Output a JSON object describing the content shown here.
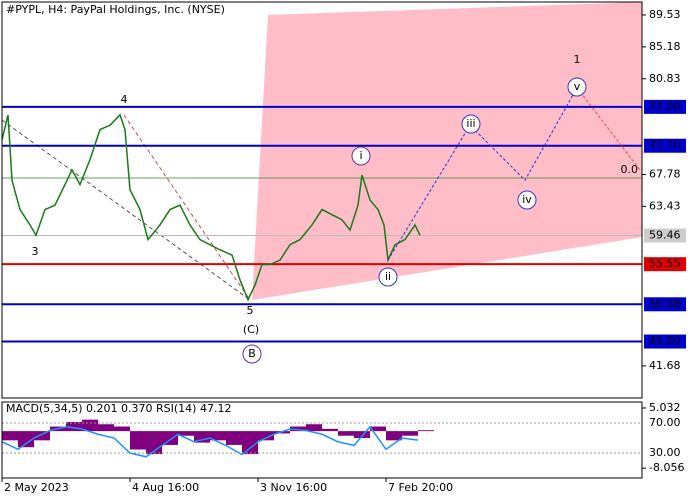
{
  "chart_data": [
    {
      "type": "line",
      "title": "#PYPL, H4:  PayPal Holdings, Inc. (NYSE)",
      "color": "#1a7a1a",
      "x": [
        0,
        1.5,
        2.5,
        4.5,
        7,
        8.5,
        10.75,
        13.25,
        15.75,
        17.5,
        19.5,
        22,
        24.5,
        27,
        29.5,
        30.75,
        32,
        34.5,
        36.5,
        39.5,
        42,
        44.5,
        47,
        49.5,
        52,
        54.5,
        57.5,
        59.5,
        61.5,
        63.25,
        65,
        67,
        69.5,
        72,
        74.5,
        77.5,
        80,
        82.5,
        85,
        87,
        89,
        90,
        92,
        94,
        95.5,
        96.5,
        98.25,
        100.75,
        103.25,
        104.5
      ],
      "values": [
        72.5,
        75.9,
        67.0,
        63.0,
        60.9,
        59.5,
        63.0,
        63.6,
        66.4,
        68.4,
        66.4,
        69.8,
        73.9,
        74.5,
        75.9,
        73.9,
        65.7,
        63.0,
        58.9,
        60.9,
        63.0,
        63.6,
        60.9,
        58.9,
        58.2,
        57.5,
        56.8,
        53.4,
        50.7,
        52.7,
        55.5,
        55.5,
        56.1,
        58.2,
        58.9,
        60.9,
        63.0,
        62.3,
        61.6,
        60.2,
        63.6,
        67.7,
        64.3,
        63.0,
        60.9,
        56.1,
        58.2,
        58.9,
        60.9,
        59.5
      ],
      "projection": {
        "color": "#3333cc",
        "x": [
          96.5,
          117,
          130.75,
          143.75
        ],
        "values": [
          56.1,
          74.5,
          67.0,
          79.6
        ]
      },
      "correction": {
        "color": "#e05050",
        "x": [
          143.75,
          159.5
        ],
        "values": [
          79.6,
          68.4
        ]
      },
      "xlim": [
        0,
        160
      ],
      "ylim": [
        37.3,
        91.3
      ],
      "xticks": [
        {
          "value": 0,
          "label": "2 May 2023"
        },
        {
          "value": 32,
          "label": "4 Aug 16:00"
        },
        {
          "value": 64,
          "label": "3 Nov 16:00"
        },
        {
          "value": 96,
          "label": "7 Feb 20:00"
        }
      ],
      "yticks": [
        89.53,
        85.18,
        80.83,
        67.78,
        63.43,
        41.68
      ],
      "levels": [
        {
          "value": 77,
          "label": "77.00",
          "color": "#0000cc"
        },
        {
          "value": 71.7,
          "label": "71.70",
          "color": "#0000cc"
        },
        {
          "value": 50.08,
          "label": "50.08",
          "color": "#0000cc"
        },
        {
          "value": 45,
          "label": "45.00",
          "color": "#0000cc"
        },
        {
          "value": 55.55,
          "label": "55.55",
          "color": "#dd0000"
        }
      ],
      "current_price": {
        "value": 59.46,
        "label": "59.46"
      },
      "fib_level": {
        "value": 67.3,
        "label": "0.0"
      },
      "annotations": [
        "1",
        "4",
        "3",
        "5",
        "(C)",
        "B",
        "i",
        "ii",
        "iii",
        "iv",
        "v"
      ]
    },
    {
      "type": "bar",
      "title": "MACD(5,34,5) 0.201 0.370 RSI(14) 47.12",
      "color": "#800080",
      "x": [
        0,
        4,
        8,
        12,
        16,
        20,
        24,
        28,
        32,
        36,
        40,
        44,
        48,
        52,
        56,
        60,
        64,
        68,
        72,
        76,
        80,
        84,
        88,
        92,
        96,
        100,
        104
      ],
      "values": [
        -2,
        -3.5,
        -2,
        1,
        2,
        2.5,
        1.5,
        1,
        -4,
        -5,
        -3,
        -1,
        -2.5,
        -2,
        -3,
        -5,
        -2,
        -0.5,
        1,
        1.5,
        0.5,
        -1,
        -1.5,
        1,
        -2,
        -1,
        0.2
      ],
      "rsi": {
        "color": "#1e90ff",
        "axis": "y2",
        "values": [
          45,
          35,
          50,
          60,
          65,
          62,
          55,
          50,
          30,
          25,
          40,
          55,
          45,
          50,
          40,
          28,
          45,
          55,
          62,
          60,
          55,
          45,
          40,
          65,
          35,
          50,
          47.12
        ]
      },
      "xlim": [
        0,
        160
      ],
      "ylim": [
        -10.2,
        6.34
      ],
      "yticks": [
        5.032,
        -8.056
      ],
      "y2lim": [
        -3.3,
        98
      ],
      "y2ticks": [
        {
          "value": 70,
          "label": "70.00"
        },
        {
          "value": 30,
          "label": "30.00"
        }
      ]
    }
  ]
}
